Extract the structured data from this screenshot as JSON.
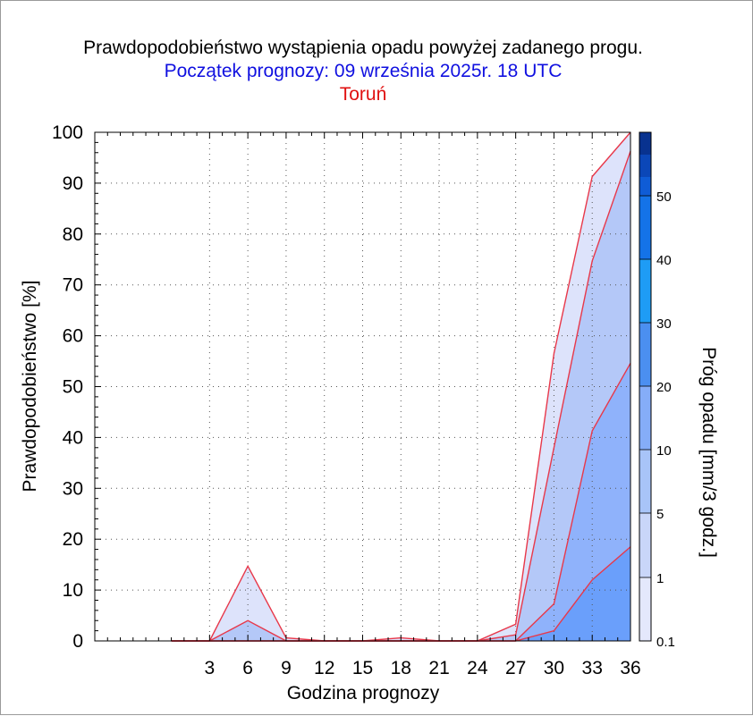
{
  "page": {
    "title": "Prawdopodobieństwo wystąpienia opadu powyżej zadanego progu.",
    "subtitle": "Początek prognozy: 09 września 2025r. 18 UTC",
    "station": "Toruń"
  },
  "chart_data": {
    "type": "area",
    "xlabel": "Godzina prognozy",
    "ylabel": "Prawdopodobieństwo [%]",
    "x": [
      0,
      3,
      6,
      9,
      12,
      15,
      18,
      21,
      24,
      27,
      30,
      33,
      36
    ],
    "x_tick_labels": [
      "3",
      "6",
      "9",
      "12",
      "15",
      "18",
      "21",
      "24",
      "27",
      "30",
      "33",
      "36"
    ],
    "xlim": [
      -6,
      36
    ],
    "ylim": [
      0,
      100
    ],
    "y_ticks": [
      0,
      10,
      20,
      30,
      40,
      50,
      60,
      70,
      80,
      90,
      100
    ],
    "grid": true,
    "series": [
      {
        "threshold": "0.1",
        "color": "#dde3fb",
        "values": [
          0,
          0,
          14.7,
          0.6,
          0,
          0,
          0.6,
          0,
          0,
          3.3,
          56.5,
          91.3,
          100
        ]
      },
      {
        "threshold": "1",
        "color": "#b4c8f8",
        "values": [
          0,
          0,
          4,
          0,
          0,
          0,
          0,
          0,
          0,
          1.2,
          38,
          74.7,
          96.3
        ]
      },
      {
        "threshold": "5",
        "color": "#8fb2fb",
        "values": [
          0,
          0,
          0,
          0,
          0,
          0,
          0,
          0,
          0,
          0,
          7.3,
          41.3,
          54.6
        ]
      },
      {
        "threshold": "10",
        "color": "#6a9ffb",
        "values": [
          0,
          0,
          0,
          0,
          0,
          0,
          0,
          0,
          0,
          0,
          2,
          12,
          18.5
        ]
      }
    ],
    "colorbar": {
      "label": "Próg opadu [mm/3 godz.]",
      "levels": [
        "0.1",
        "1",
        "5",
        "10",
        "20",
        "30",
        "40",
        "50"
      ],
      "colors": [
        "#e4e8fc",
        "#c9d6f9",
        "#a8c4f8",
        "#85adf8",
        "#4b8ff0",
        "#1e9cf5",
        "#1473e8",
        "#0f5cd6",
        "#0b47b8",
        "#08328f"
      ]
    }
  }
}
